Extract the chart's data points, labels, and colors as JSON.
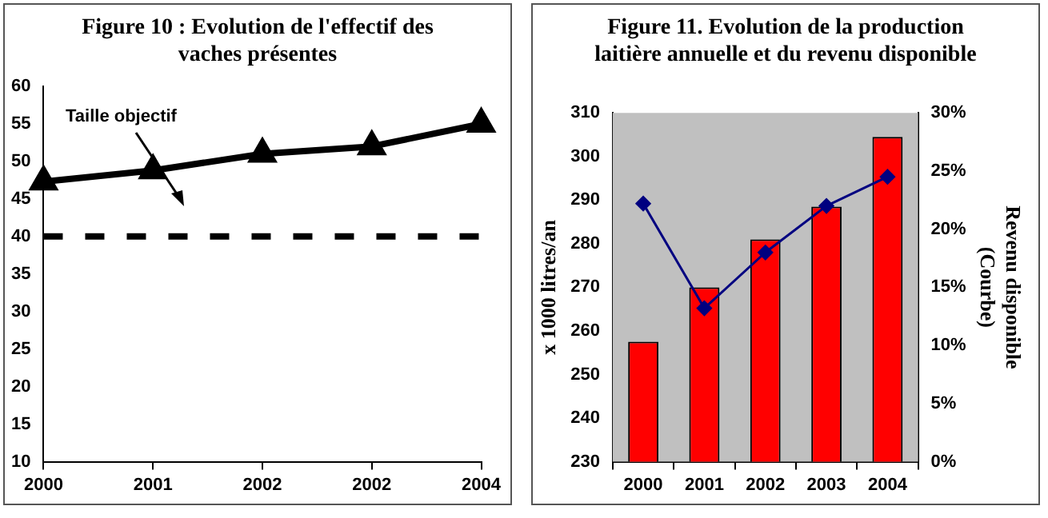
{
  "chart_data": [
    {
      "type": "line",
      "title": "Figure 10 : Evolution de l'effectif des vaches présentes",
      "categories": [
        "2000",
        "2001",
        "2002",
        "2002",
        "2004"
      ],
      "values": [
        47.3,
        48.8,
        51,
        52,
        55
      ],
      "color": "#000000",
      "marker": "triangle",
      "ylim": [
        10,
        60
      ],
      "yticks": [
        10,
        15,
        20,
        25,
        30,
        35,
        40,
        45,
        50,
        55,
        60
      ],
      "ref_lines": [
        {
          "axis": "y",
          "value": 40,
          "line_style": "dashed",
          "color": "#000000"
        }
      ],
      "annotations": [
        "Taille objectif"
      ]
    },
    {
      "type": "bar",
      "title": "Figure 11. Evolution de la production laitière annuelle et du revenu disponible",
      "ylabel": "x 1000 litres/an",
      "y2label": "Revenu disponible\n(Courbe)",
      "categories": [
        "2000",
        "2001",
        "2002",
        "2003",
        "2004"
      ],
      "series": [
        {
          "type": "bar",
          "color": "#ff0000",
          "values": [
            257.5,
            270,
            281,
            288.5,
            304.5
          ]
        },
        {
          "type": "line",
          "axis": "y2",
          "color": "#000080",
          "marker": "diamond",
          "values": [
            22.2,
            13.2,
            18,
            22,
            24.5
          ]
        }
      ],
      "ylim": [
        230,
        310
      ],
      "yticks": [
        230,
        240,
        250,
        260,
        270,
        280,
        290,
        300,
        310
      ],
      "y2lim": [
        0,
        30
      ],
      "y2ticks": [
        {
          "value": 0,
          "label": "0%"
        },
        {
          "value": 5,
          "label": "5%"
        },
        {
          "value": 10,
          "label": "10%"
        },
        {
          "value": 15,
          "label": "15%"
        },
        {
          "value": 20,
          "label": "20%"
        },
        {
          "value": 25,
          "label": "25%"
        },
        {
          "value": 30,
          "label": "30%"
        }
      ]
    }
  ]
}
